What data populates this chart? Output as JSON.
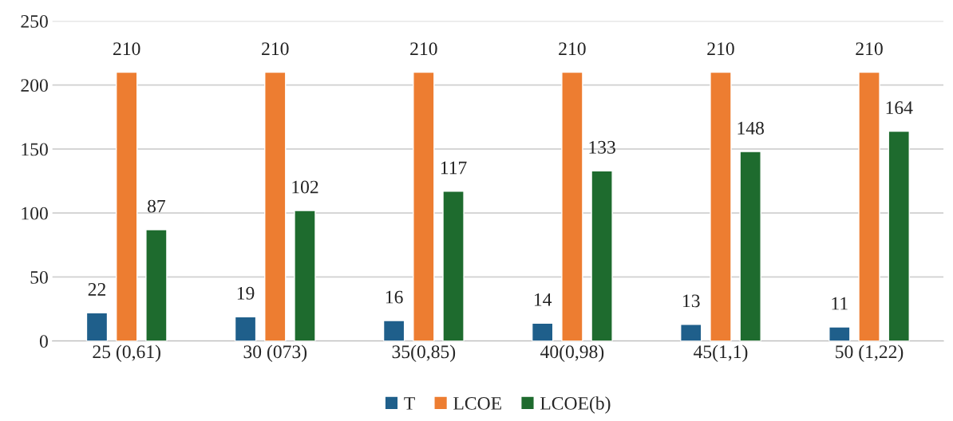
{
  "chart_data": {
    "type": "bar",
    "categories": [
      "25 (0,61)",
      "30 (073)",
      "35(0,85)",
      "40(0,98)",
      "45(1,1)",
      "50 (1,22)"
    ],
    "series": [
      {
        "name": "T",
        "color": "#1f5f8b",
        "values": [
          22,
          19,
          16,
          14,
          13,
          11
        ]
      },
      {
        "name": "LCOE",
        "color": "#ed7d31",
        "values": [
          210,
          210,
          210,
          210,
          210,
          210
        ]
      },
      {
        "name": "LCOE(b)",
        "color": "#1e6b2e",
        "values": [
          87,
          102,
          117,
          133,
          148,
          164
        ]
      }
    ],
    "ylim": [
      0,
      250
    ],
    "yticks": [
      0,
      50,
      100,
      150,
      200,
      250
    ],
    "grid": "y",
    "legend": "bottom",
    "data_labels": true
  }
}
